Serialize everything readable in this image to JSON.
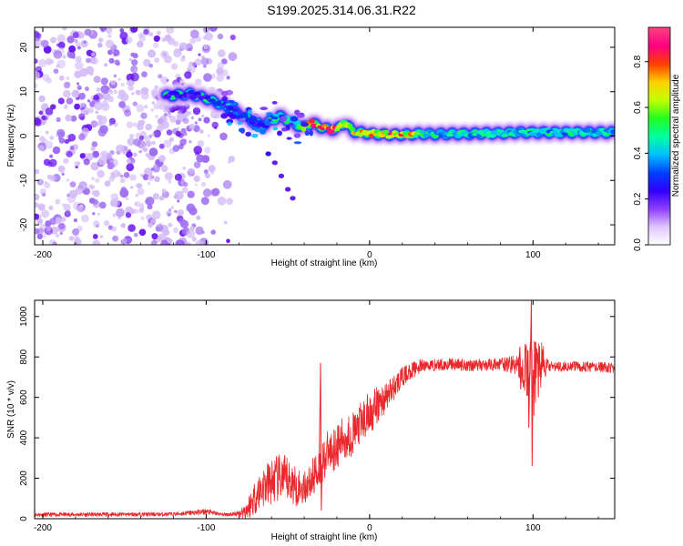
{
  "title": "S199.2025.314.06.31.R22",
  "chart_data": [
    {
      "type": "heatmap",
      "xlabel": "Height of straight line (km)",
      "ylabel": "Frequency (Hz)",
      "xlim": [
        -205,
        150
      ],
      "ylim": [
        -24.5,
        24.5
      ],
      "xticks": [
        -200,
        -100,
        0,
        100
      ],
      "yticks": [
        -20,
        -10,
        0,
        10,
        20
      ],
      "colorbar": {
        "label": "Normalized spectral amplitude",
        "range": [
          0.0,
          0.95
        ],
        "ticks": [
          0.0,
          0.2,
          0.4,
          0.6,
          0.8
        ],
        "colormap": [
          "#ffffff",
          "#e0c8ff",
          "#9040ff",
          "#3000ff",
          "#0040ff",
          "#00c0ff",
          "#00ffa0",
          "#20ff20",
          "#c0ff00",
          "#ffd000",
          "#ff4000",
          "#ff0080",
          "#ff4080"
        ]
      },
      "ridge": {
        "description": "dominant frequency track vs height",
        "x": [
          -125,
          -110,
          -100,
          -90,
          -80,
          -75,
          -70,
          -65,
          -60,
          -55,
          -50,
          -45,
          -40,
          -35,
          -30,
          -25,
          -20,
          -15,
          -10,
          -5,
          0,
          10,
          20,
          30,
          40,
          50,
          60,
          70,
          80,
          90,
          100,
          110,
          120,
          130,
          140,
          150
        ],
        "y": [
          9,
          9.5,
          8.5,
          7,
          5,
          4,
          3,
          2.5,
          3.5,
          4.5,
          3.5,
          2.5,
          2,
          3,
          2,
          1.5,
          1.5,
          3,
          1,
          0.8,
          0.5,
          0.3,
          0.3,
          0.5,
          0.4,
          0.5,
          0.5,
          0.6,
          0.6,
          0.8,
          0.8,
          0.8,
          0.8,
          0.8,
          0.8,
          0.8
        ],
        "amplitude": [
          0.25,
          0.25,
          0.25,
          0.3,
          0.25,
          0.3,
          0.3,
          0.25,
          0.3,
          0.35,
          0.45,
          0.5,
          0.6,
          0.8,
          0.8,
          0.8,
          0.75,
          0.6,
          0.7,
          0.8,
          0.7,
          0.75,
          0.8,
          0.6,
          0.45,
          0.45,
          0.45,
          0.45,
          0.45,
          0.5,
          0.4,
          0.45,
          0.4,
          0.45,
          0.45,
          0.45
        ]
      },
      "branch": {
        "description": "descending secondary feature",
        "x": [
          -62,
          -58,
          -54,
          -50,
          -47
        ],
        "y": [
          -4,
          -6,
          -9,
          -12,
          -14
        ]
      },
      "noise_region": {
        "x_range": [
          -205,
          -80
        ],
        "description": "scattered low-amplitude speckle"
      }
    },
    {
      "type": "line",
      "xlabel": "Height of straight line (km)",
      "ylabel": "SNR (10 * v/v)",
      "xlim": [
        -205,
        150
      ],
      "ylim": [
        0,
        1080
      ],
      "xticks": [
        -200,
        -100,
        0,
        100
      ],
      "yticks": [
        0,
        200,
        400,
        600,
        800,
        1000
      ],
      "color": "#e8282c",
      "envelope": {
        "x": [
          -205,
          -120,
          -100,
          -90,
          -80,
          -75,
          -70,
          -65,
          -60,
          -55,
          -50,
          -45,
          -40,
          -35,
          -30,
          -25,
          -20,
          -15,
          -10,
          -5,
          0,
          5,
          10,
          15,
          20,
          25,
          30,
          35,
          40,
          50,
          60,
          70,
          80,
          90,
          95,
          100,
          105,
          110,
          120,
          130,
          140,
          150
        ],
        "y": [
          20,
          22,
          35,
          20,
          25,
          45,
          110,
          160,
          180,
          200,
          190,
          160,
          150,
          200,
          270,
          330,
          360,
          400,
          420,
          470,
          520,
          560,
          600,
          650,
          700,
          730,
          750,
          760,
          760,
          765,
          760,
          760,
          765,
          760,
          740,
          700,
          760,
          750,
          755,
          750,
          750,
          745
        ]
      },
      "noise_amp": {
        "x": [
          -205,
          -120,
          -100,
          -90,
          -80,
          -70,
          -60,
          -50,
          -40,
          -30,
          -20,
          -10,
          0,
          10,
          20,
          30,
          40,
          80,
          90,
          100,
          110,
          150
        ],
        "y": [
          10,
          10,
          15,
          8,
          15,
          90,
          120,
          120,
          80,
          110,
          110,
          110,
          110,
          80,
          50,
          35,
          30,
          30,
          50,
          220,
          25,
          25
        ]
      },
      "spikes": [
        {
          "x": -30,
          "y": 770,
          "min": 40
        },
        {
          "x": 99,
          "y": 1080,
          "min": 260
        },
        {
          "x": 97,
          "y": 830,
          "min": 450
        },
        {
          "x": 92,
          "y": 850,
          "min": 640
        }
      ]
    }
  ]
}
